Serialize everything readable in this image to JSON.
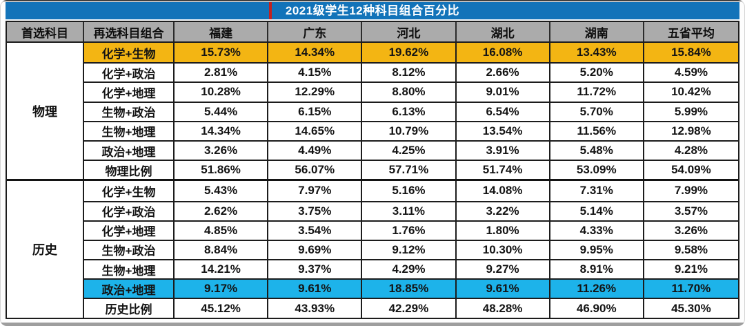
{
  "title": "2021级学生12种科目组合百分比",
  "colors": {
    "title_bar_blue": "#1273b9",
    "red_marker": "#c32120",
    "header_gray": "#ababab",
    "highlight_orange": "#f3b513",
    "highlight_cyan": "#1db3ea",
    "border_black": "#1c1c1c",
    "bottom_edge_gray": "#9e9e9e"
  },
  "chart_data": {
    "type": "table",
    "title": "2021级学生12种科目组合百分比",
    "columns": [
      "首选科目",
      "再选科目组合",
      "福建",
      "广东",
      "河北",
      "湖北",
      "湖南",
      "五省平均"
    ],
    "sections": [
      {
        "subject": "物理",
        "rows": [
          {
            "label": "化学+生物",
            "highlight": "orange",
            "values": [
              "15.73%",
              "14.34%",
              "19.62%",
              "16.08%",
              "13.43%",
              "15.84%"
            ]
          },
          {
            "label": "化学+政治",
            "highlight": "",
            "values": [
              "2.81%",
              "4.15%",
              "8.12%",
              "2.66%",
              "5.20%",
              "4.59%"
            ]
          },
          {
            "label": "化学+地理",
            "highlight": "",
            "values": [
              "10.28%",
              "12.29%",
              "8.80%",
              "9.01%",
              "11.72%",
              "10.42%"
            ]
          },
          {
            "label": "生物+政治",
            "highlight": "",
            "values": [
              "5.44%",
              "6.15%",
              "6.13%",
              "6.54%",
              "5.70%",
              "5.99%"
            ]
          },
          {
            "label": "生物+地理",
            "highlight": "",
            "values": [
              "14.34%",
              "14.65%",
              "10.79%",
              "13.54%",
              "11.56%",
              "12.98%"
            ]
          },
          {
            "label": "政治+地理",
            "highlight": "",
            "values": [
              "3.26%",
              "4.49%",
              "4.25%",
              "3.91%",
              "5.48%",
              "4.28%"
            ]
          },
          {
            "label": "物理比例",
            "highlight": "",
            "values": [
              "51.86%",
              "56.07%",
              "57.71%",
              "51.74%",
              "53.09%",
              "54.09%"
            ]
          }
        ]
      },
      {
        "subject": "历史",
        "rows": [
          {
            "label": "化学+生物",
            "highlight": "",
            "values": [
              "5.43%",
              "7.97%",
              "5.16%",
              "14.08%",
              "7.31%",
              "7.99%"
            ]
          },
          {
            "label": "化学+政治",
            "highlight": "",
            "values": [
              "2.62%",
              "3.75%",
              "3.11%",
              "3.22%",
              "5.14%",
              "3.57%"
            ]
          },
          {
            "label": "化学+地理",
            "highlight": "",
            "values": [
              "4.85%",
              "3.54%",
              "1.76%",
              "1.80%",
              "4.33%",
              "3.26%"
            ]
          },
          {
            "label": "生物+政治",
            "highlight": "",
            "values": [
              "8.84%",
              "9.69%",
              "9.12%",
              "10.30%",
              "9.95%",
              "9.58%"
            ]
          },
          {
            "label": "生物+地理",
            "highlight": "",
            "values": [
              "14.21%",
              "9.37%",
              "4.29%",
              "9.27%",
              "8.91%",
              "9.21%"
            ]
          },
          {
            "label": "政治+地理",
            "highlight": "cyan",
            "values": [
              "9.17%",
              "9.61%",
              "18.85%",
              "9.61%",
              "11.26%",
              "11.70%"
            ]
          },
          {
            "label": "历史比例",
            "highlight": "",
            "values": [
              "45.12%",
              "43.93%",
              "42.29%",
              "48.28%",
              "46.90%",
              "45.30%"
            ]
          }
        ]
      }
    ]
  }
}
